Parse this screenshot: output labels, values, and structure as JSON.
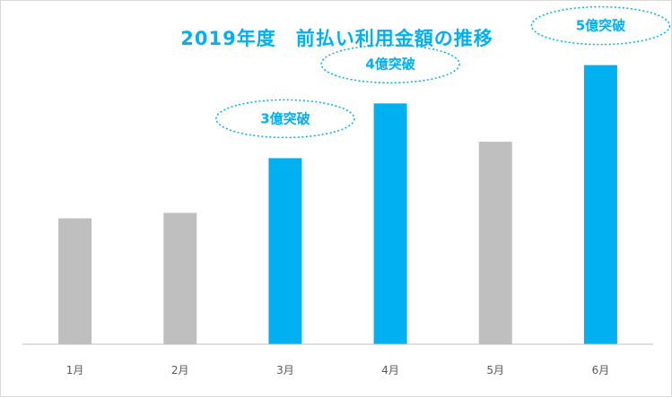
{
  "chart_data": {
    "type": "bar",
    "title": "2019年度　前払い利用金額の推移",
    "categories": [
      "1月",
      "2月",
      "3月",
      "4月",
      "5月",
      "6月"
    ],
    "values": [
      2.3,
      2.4,
      3.4,
      4.4,
      3.7,
      5.1
    ],
    "highlighted": [
      false,
      false,
      true,
      true,
      false,
      true
    ],
    "annotations": [
      {
        "category": "3月",
        "text": "3億突破"
      },
      {
        "category": "4月",
        "text": "4億突破"
      },
      {
        "category": "6月",
        "text": "5億突破"
      }
    ],
    "ylim": [
      0,
      5.7
    ],
    "grid": false,
    "legend": "none",
    "colors": {
      "highlight": "#00b0f0",
      "normal": "#bfbfbf",
      "axis": "#bfbfbf",
      "callout": "#00b0f0"
    }
  }
}
